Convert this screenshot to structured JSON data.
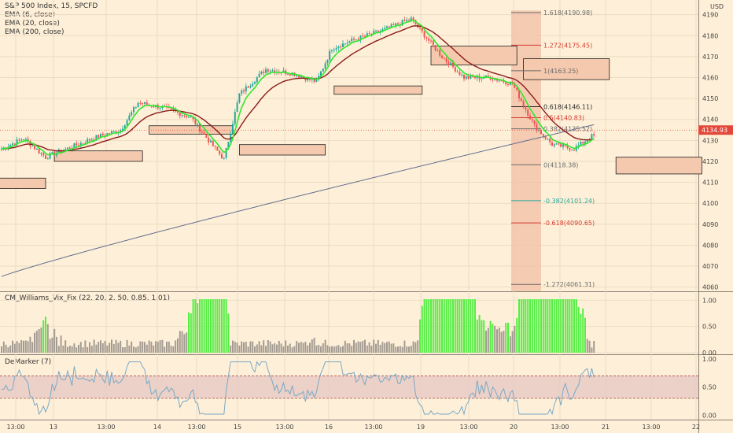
{
  "header": {
    "symbol_line": "S&P 500 Index, 15, SPCFD",
    "currency": "USD",
    "legend": [
      "EMA (6, close)",
      "EMA (20, close)",
      "EMA (200, close)"
    ]
  },
  "colors": {
    "background": "#fef0d8",
    "grid": "#ebdcc3",
    "candle_up": "#26a69a",
    "candle_down": "#ef5350",
    "ema6": "#2ee82e",
    "ema20": "#8b1a1a",
    "ema200": "#5f6b8c",
    "box_fill": "#f4c9ad",
    "fib_zone": "#f2bfa6",
    "vix_green": "#55ee44",
    "vix_gray": "#a39b92",
    "demarker_line": "#7aa9c7",
    "demarker_band": "#e6c9c4",
    "price_marker": "#e2473a"
  },
  "chart_data": [
    {
      "type": "candlestick",
      "title": "S&P 500 Index, 15, SPCFD",
      "y_axis": {
        "unit": "USD",
        "min": 4058,
        "max": 4194,
        "ticks": [
          4060,
          4070,
          4080,
          4090,
          4100,
          4110,
          4120,
          4130,
          4140,
          4150,
          4160,
          4170,
          4180,
          4190
        ]
      },
      "x_tick_labels": [
        "13:00",
        "13",
        "13:00",
        "14",
        "13:00",
        "15",
        "13:00",
        "16",
        "13:00",
        "19",
        "13:00",
        "20",
        "13:00",
        "21",
        "13:00",
        "22"
      ],
      "last_price": "4134.93",
      "series": [
        {
          "name": "EMA (6, close)",
          "role": "fast"
        },
        {
          "name": "EMA (20, close)",
          "role": "mid"
        },
        {
          "name": "EMA (200, close)",
          "role": "slow"
        }
      ],
      "close_waypoints": [
        [
          0,
          4126
        ],
        [
          10,
          4131
        ],
        [
          20,
          4122
        ],
        [
          32,
          4127
        ],
        [
          44,
          4132
        ],
        [
          54,
          4135
        ],
        [
          62,
          4148
        ],
        [
          72,
          4146
        ],
        [
          86,
          4141
        ],
        [
          94,
          4130
        ],
        [
          101,
          4121
        ],
        [
          108,
          4152
        ],
        [
          120,
          4164
        ],
        [
          132,
          4162
        ],
        [
          143,
          4158
        ],
        [
          150,
          4174
        ],
        [
          160,
          4178
        ],
        [
          174,
          4183
        ],
        [
          186,
          4188
        ],
        [
          200,
          4170
        ],
        [
          210,
          4160
        ],
        [
          222,
          4160
        ],
        [
          232,
          4157
        ],
        [
          242,
          4137
        ],
        [
          250,
          4128
        ],
        [
          260,
          4126
        ],
        [
          268,
          4132
        ]
      ],
      "fibonacci": [
        {
          "ratio": "1.618",
          "price": "4190.98",
          "color": "#6b6b6b"
        },
        {
          "ratio": "1.272",
          "price": "4175.45",
          "color": "#d43a2f"
        },
        {
          "ratio": "1",
          "price": "4163.25",
          "color": "#6b6b6b"
        },
        {
          "ratio": "0.618",
          "price": "4146.11",
          "color": "#2a2a2a"
        },
        {
          "ratio": "0.5",
          "price": "4140.83",
          "color": "#d43a2f"
        },
        {
          "ratio": "0.382",
          "price": "4135.52",
          "color": "#6b6b6b"
        },
        {
          "ratio": "0",
          "price": "4118.38",
          "color": "#6b6b6b"
        },
        {
          "ratio": "-0.382",
          "price": "4101.24",
          "color": "#26a69a"
        },
        {
          "ratio": "-0.618",
          "price": "4090.65",
          "color": "#d43a2f"
        },
        {
          "ratio": "-1.272",
          "price": "4061.31",
          "color": "#6b6b6b"
        }
      ],
      "zones": [
        {
          "from_bar": -2,
          "to_bar": 20,
          "top": 4112,
          "bottom": 4107
        },
        {
          "from_bar": 24,
          "to_bar": 64,
          "top": 4125,
          "bottom": 4120
        },
        {
          "from_bar": 67,
          "to_bar": 105,
          "top": 4137,
          "bottom": 4133
        },
        {
          "from_bar": 108,
          "to_bar": 147,
          "top": 4128,
          "bottom": 4123
        },
        {
          "from_bar": 151,
          "to_bar": 191,
          "top": 4156,
          "bottom": 4152
        },
        {
          "from_bar": 195,
          "to_bar": 234,
          "top": 4175,
          "bottom": 4166
        },
        {
          "from_bar": 237,
          "to_bar": 276,
          "top": 4169,
          "bottom": 4159
        },
        {
          "from_bar": 279,
          "to_bar": 318,
          "top": 4122,
          "bottom": 4114
        }
      ]
    },
    {
      "type": "bar",
      "title": "CM_Williams_Vix_Fix (22, 20, 2, 50, 0.85, 1.01)",
      "y_axis": {
        "min": 0,
        "max": 1.05,
        "ticks": [
          "0.00",
          "0.50",
          "1.00"
        ]
      },
      "colors": [
        "gray",
        "green"
      ]
    },
    {
      "type": "line",
      "title": "DeMarker (7)",
      "y_axis": {
        "min": -0.05,
        "max": 1.0,
        "ticks": [
          "0.00",
          "0.50",
          "1.00"
        ]
      },
      "band": [
        0.3,
        0.7
      ]
    }
  ]
}
